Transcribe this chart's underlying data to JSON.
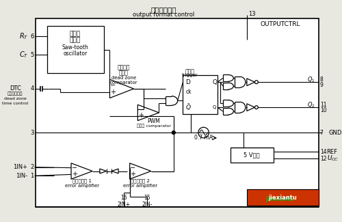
{
  "bg_color": "#e8e8e0",
  "title_zh": "输出方式控制",
  "title_en": "output format control",
  "outputctrl": "OUTPUTCTRL",
  "pin13": "13",
  "watermark": "jiexiantu",
  "wm_color": "#22aa22"
}
